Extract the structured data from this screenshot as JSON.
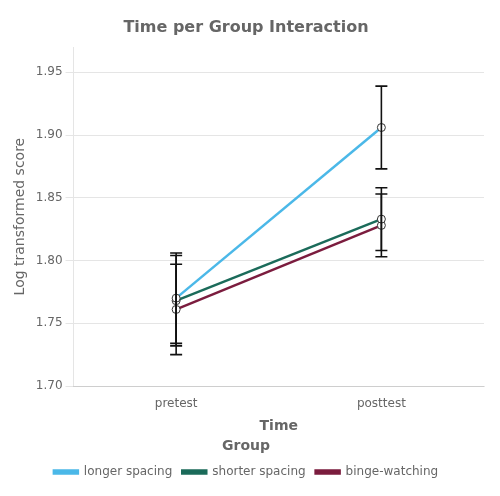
{
  "chart_data": {
    "type": "line",
    "title": "Time per Group Interaction",
    "x_label": "Time",
    "y_label": "Log transformed score",
    "categories": [
      "pretest",
      "posttest"
    ],
    "series": [
      {
        "name": "longer spacing",
        "color": "#4BB8E8",
        "values": [
          1.77,
          1.906
        ],
        "errors": [
          0.036,
          0.033
        ]
      },
      {
        "name": "shorter spacing",
        "color": "#1B6B5A",
        "values": [
          1.768,
          1.833
        ],
        "errors": [
          0.036,
          0.025
        ]
      },
      {
        "name": "binge-watching",
        "color": "#7B1C3E",
        "values": [
          1.761,
          1.828
        ],
        "errors": [
          0.036,
          0.025
        ]
      }
    ],
    "ylim": [
      1.7,
      1.97
    ],
    "yticks": [
      {
        "value": 1.7,
        "label": "1.70"
      },
      {
        "value": 1.75,
        "label": "1.75"
      },
      {
        "value": 1.8,
        "label": "1.80"
      },
      {
        "value": 1.85,
        "label": "1.85"
      },
      {
        "value": 1.9,
        "label": "1.90"
      },
      {
        "value": 1.95,
        "label": "1.95"
      }
    ],
    "grid": true,
    "legend": "bottom",
    "legend_title": "Group",
    "marker": "circle"
  }
}
